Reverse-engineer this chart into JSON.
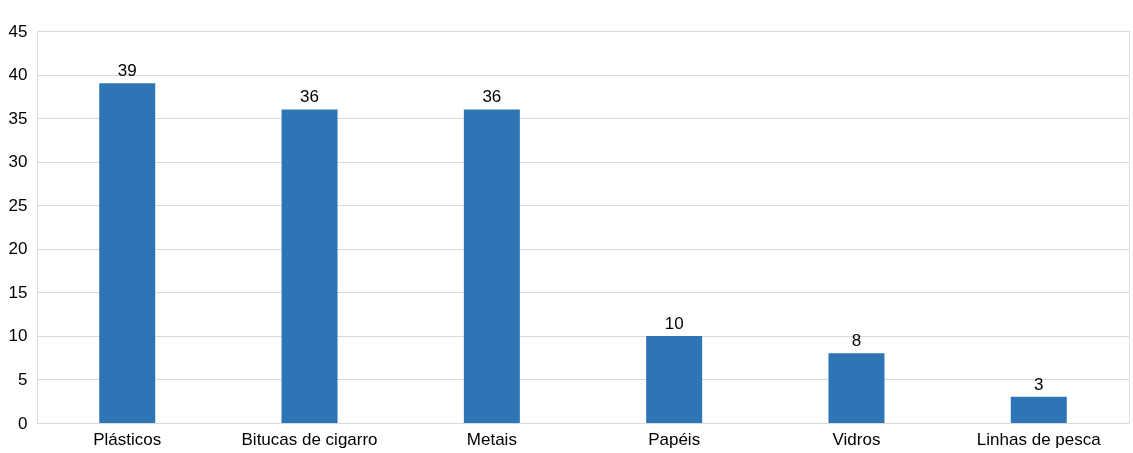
{
  "chart_data": {
    "type": "bar",
    "categories": [
      "Plásticos",
      "Bitucas de cigarro",
      "Metais",
      "Papéis",
      "Vidros",
      "Linhas de pesca"
    ],
    "values": [
      39,
      36,
      36,
      10,
      8,
      3
    ],
    "color": "#2e75b6",
    "ylim": [
      0,
      45
    ],
    "yticks": [
      0,
      5,
      10,
      15,
      20,
      25,
      30,
      35,
      40,
      45
    ],
    "grid": "y",
    "data_labels": true
  }
}
